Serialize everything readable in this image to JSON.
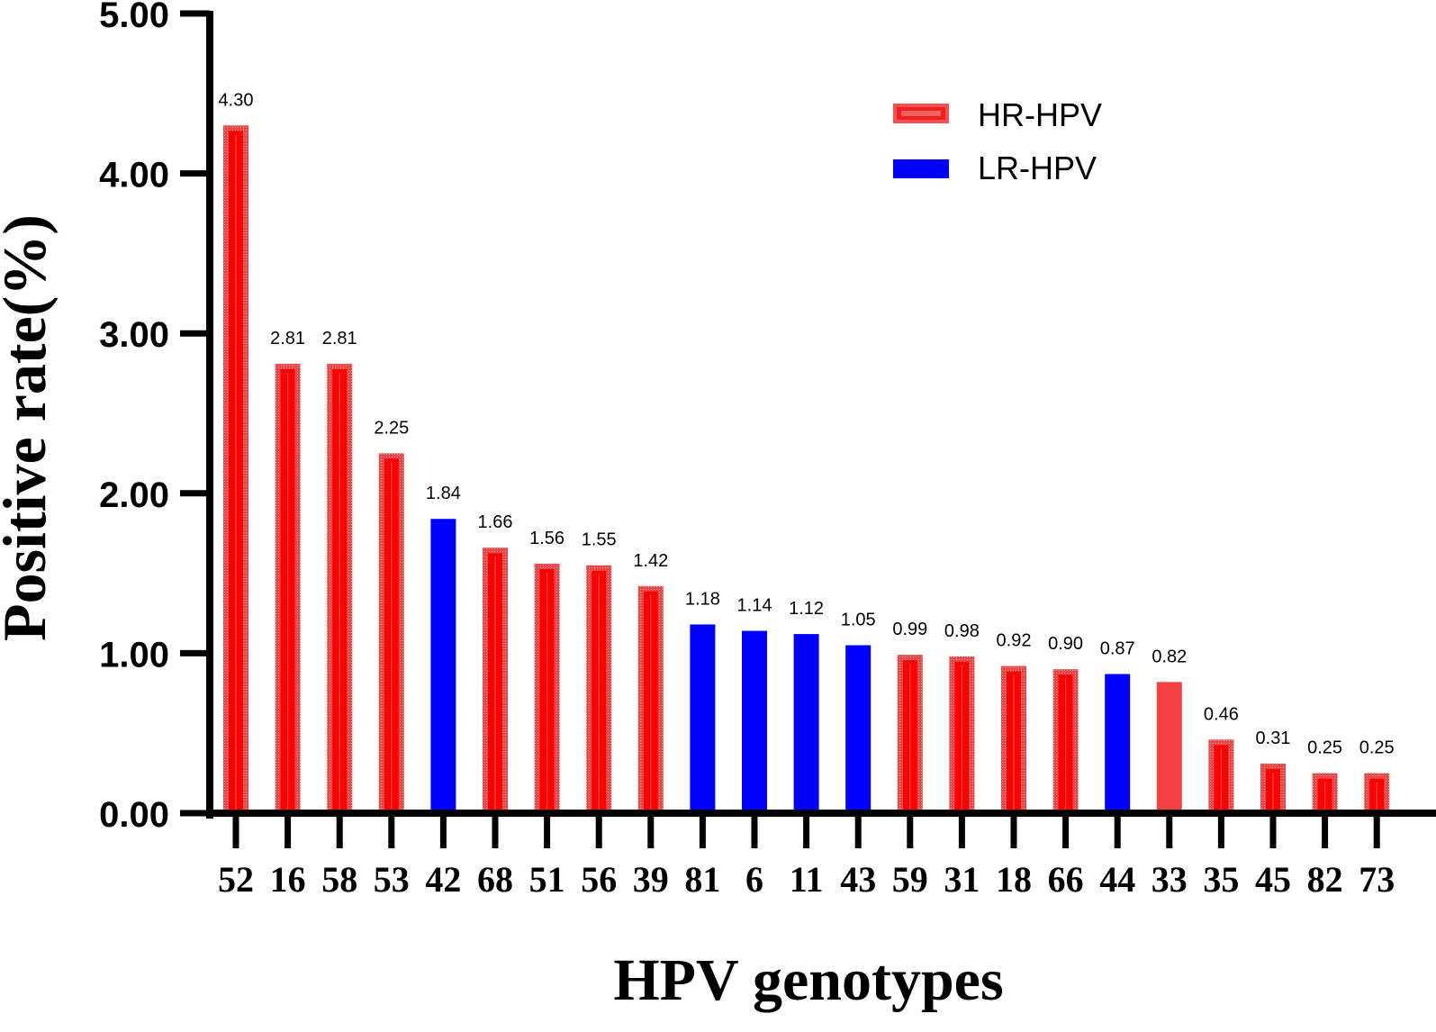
{
  "chart_data": {
    "type": "bar",
    "title": "",
    "xlabel": "HPV genotypes",
    "ylabel": "Positive rate(%)",
    "ylim": [
      0,
      5
    ],
    "yticks": [
      0,
      1,
      2,
      3,
      4,
      5
    ],
    "ytick_labels": [
      "0.00",
      "1.00",
      "2.00",
      "3.00",
      "4.00",
      "5.00"
    ],
    "grid": false,
    "legend_position": "top-right",
    "legend": [
      {
        "name": "HR-HPV",
        "group": "HR",
        "color": "#ff0000",
        "edge_color": "#f45050"
      },
      {
        "name": "LR-HPV",
        "group": "LR",
        "color": "#0000ff",
        "edge_color": "#0000ff"
      }
    ],
    "categories": [
      "52",
      "16",
      "58",
      "53",
      "42",
      "68",
      "51",
      "56",
      "39",
      "81",
      "6",
      "11",
      "43",
      "59",
      "31",
      "18",
      "66",
      "44",
      "33",
      "35",
      "45",
      "82",
      "73"
    ],
    "values": [
      4.3,
      2.81,
      2.81,
      2.25,
      1.84,
      1.66,
      1.56,
      1.55,
      1.42,
      1.18,
      1.14,
      1.12,
      1.05,
      0.99,
      0.98,
      0.92,
      0.9,
      0.87,
      0.82,
      0.46,
      0.31,
      0.25,
      0.25
    ],
    "value_labels": [
      "4.30",
      "2.81",
      "2.81",
      "2.25",
      "1.84",
      "1.66",
      "1.56",
      "1.55",
      "1.42",
      "1.18",
      "1.14",
      "1.12",
      "1.05",
      "0.99",
      "0.98",
      "0.92",
      "0.90",
      "0.87",
      "0.82",
      "0.46",
      "0.31",
      "0.25",
      "0.25"
    ],
    "groups": [
      "HR",
      "HR",
      "HR",
      "HR",
      "LR",
      "HR",
      "HR",
      "HR",
      "HR",
      "LR",
      "LR",
      "LR",
      "LR",
      "HR",
      "HR",
      "HR",
      "HR",
      "LR",
      "HR",
      "HR",
      "HR",
      "HR",
      "HR"
    ],
    "special_fill": {
      "33": "#f44040"
    }
  }
}
